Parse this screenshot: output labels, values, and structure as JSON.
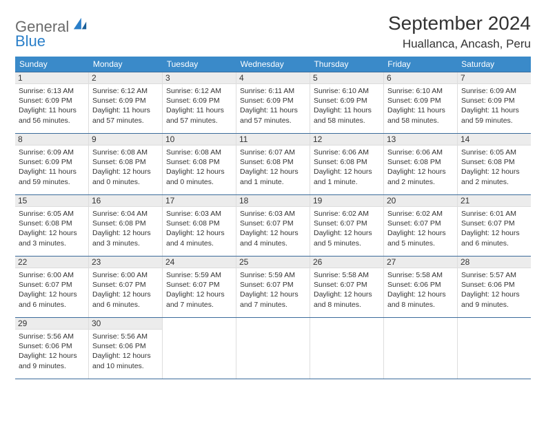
{
  "logo": {
    "word1": "General",
    "word2": "Blue"
  },
  "title": "September 2024",
  "location": "Huallanca, Ancash, Peru",
  "colors": {
    "header_bg": "#3a8ac9",
    "header_text": "#ffffff",
    "row_border": "#3a6a9a",
    "daynum_bg": "#ececec",
    "text": "#333333",
    "logo_gray": "#6a6a6a",
    "logo_blue": "#2a7fc9",
    "page_bg": "#ffffff"
  },
  "daysOfWeek": [
    "Sunday",
    "Monday",
    "Tuesday",
    "Wednesday",
    "Thursday",
    "Friday",
    "Saturday"
  ],
  "weeks": [
    [
      {
        "n": "1",
        "sr": "Sunrise: 6:13 AM",
        "ss": "Sunset: 6:09 PM",
        "dl": "Daylight: 11 hours and 56 minutes."
      },
      {
        "n": "2",
        "sr": "Sunrise: 6:12 AM",
        "ss": "Sunset: 6:09 PM",
        "dl": "Daylight: 11 hours and 57 minutes."
      },
      {
        "n": "3",
        "sr": "Sunrise: 6:12 AM",
        "ss": "Sunset: 6:09 PM",
        "dl": "Daylight: 11 hours and 57 minutes."
      },
      {
        "n": "4",
        "sr": "Sunrise: 6:11 AM",
        "ss": "Sunset: 6:09 PM",
        "dl": "Daylight: 11 hours and 57 minutes."
      },
      {
        "n": "5",
        "sr": "Sunrise: 6:10 AM",
        "ss": "Sunset: 6:09 PM",
        "dl": "Daylight: 11 hours and 58 minutes."
      },
      {
        "n": "6",
        "sr": "Sunrise: 6:10 AM",
        "ss": "Sunset: 6:09 PM",
        "dl": "Daylight: 11 hours and 58 minutes."
      },
      {
        "n": "7",
        "sr": "Sunrise: 6:09 AM",
        "ss": "Sunset: 6:09 PM",
        "dl": "Daylight: 11 hours and 59 minutes."
      }
    ],
    [
      {
        "n": "8",
        "sr": "Sunrise: 6:09 AM",
        "ss": "Sunset: 6:09 PM",
        "dl": "Daylight: 11 hours and 59 minutes."
      },
      {
        "n": "9",
        "sr": "Sunrise: 6:08 AM",
        "ss": "Sunset: 6:08 PM",
        "dl": "Daylight: 12 hours and 0 minutes."
      },
      {
        "n": "10",
        "sr": "Sunrise: 6:08 AM",
        "ss": "Sunset: 6:08 PM",
        "dl": "Daylight: 12 hours and 0 minutes."
      },
      {
        "n": "11",
        "sr": "Sunrise: 6:07 AM",
        "ss": "Sunset: 6:08 PM",
        "dl": "Daylight: 12 hours and 1 minute."
      },
      {
        "n": "12",
        "sr": "Sunrise: 6:06 AM",
        "ss": "Sunset: 6:08 PM",
        "dl": "Daylight: 12 hours and 1 minute."
      },
      {
        "n": "13",
        "sr": "Sunrise: 6:06 AM",
        "ss": "Sunset: 6:08 PM",
        "dl": "Daylight: 12 hours and 2 minutes."
      },
      {
        "n": "14",
        "sr": "Sunrise: 6:05 AM",
        "ss": "Sunset: 6:08 PM",
        "dl": "Daylight: 12 hours and 2 minutes."
      }
    ],
    [
      {
        "n": "15",
        "sr": "Sunrise: 6:05 AM",
        "ss": "Sunset: 6:08 PM",
        "dl": "Daylight: 12 hours and 3 minutes."
      },
      {
        "n": "16",
        "sr": "Sunrise: 6:04 AM",
        "ss": "Sunset: 6:08 PM",
        "dl": "Daylight: 12 hours and 3 minutes."
      },
      {
        "n": "17",
        "sr": "Sunrise: 6:03 AM",
        "ss": "Sunset: 6:08 PM",
        "dl": "Daylight: 12 hours and 4 minutes."
      },
      {
        "n": "18",
        "sr": "Sunrise: 6:03 AM",
        "ss": "Sunset: 6:07 PM",
        "dl": "Daylight: 12 hours and 4 minutes."
      },
      {
        "n": "19",
        "sr": "Sunrise: 6:02 AM",
        "ss": "Sunset: 6:07 PM",
        "dl": "Daylight: 12 hours and 5 minutes."
      },
      {
        "n": "20",
        "sr": "Sunrise: 6:02 AM",
        "ss": "Sunset: 6:07 PM",
        "dl": "Daylight: 12 hours and 5 minutes."
      },
      {
        "n": "21",
        "sr": "Sunrise: 6:01 AM",
        "ss": "Sunset: 6:07 PM",
        "dl": "Daylight: 12 hours and 6 minutes."
      }
    ],
    [
      {
        "n": "22",
        "sr": "Sunrise: 6:00 AM",
        "ss": "Sunset: 6:07 PM",
        "dl": "Daylight: 12 hours and 6 minutes."
      },
      {
        "n": "23",
        "sr": "Sunrise: 6:00 AM",
        "ss": "Sunset: 6:07 PM",
        "dl": "Daylight: 12 hours and 6 minutes."
      },
      {
        "n": "24",
        "sr": "Sunrise: 5:59 AM",
        "ss": "Sunset: 6:07 PM",
        "dl": "Daylight: 12 hours and 7 minutes."
      },
      {
        "n": "25",
        "sr": "Sunrise: 5:59 AM",
        "ss": "Sunset: 6:07 PM",
        "dl": "Daylight: 12 hours and 7 minutes."
      },
      {
        "n": "26",
        "sr": "Sunrise: 5:58 AM",
        "ss": "Sunset: 6:07 PM",
        "dl": "Daylight: 12 hours and 8 minutes."
      },
      {
        "n": "27",
        "sr": "Sunrise: 5:58 AM",
        "ss": "Sunset: 6:06 PM",
        "dl": "Daylight: 12 hours and 8 minutes."
      },
      {
        "n": "28",
        "sr": "Sunrise: 5:57 AM",
        "ss": "Sunset: 6:06 PM",
        "dl": "Daylight: 12 hours and 9 minutes."
      }
    ],
    [
      {
        "n": "29",
        "sr": "Sunrise: 5:56 AM",
        "ss": "Sunset: 6:06 PM",
        "dl": "Daylight: 12 hours and 9 minutes."
      },
      {
        "n": "30",
        "sr": "Sunrise: 5:56 AM",
        "ss": "Sunset: 6:06 PM",
        "dl": "Daylight: 12 hours and 10 minutes."
      },
      null,
      null,
      null,
      null,
      null
    ]
  ]
}
